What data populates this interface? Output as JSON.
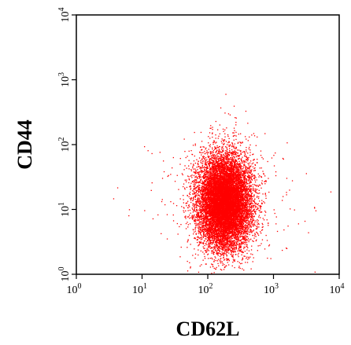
{
  "chart_data": {
    "type": "scatter",
    "xlabel": "CD62L",
    "ylabel": "CD44",
    "xscale": "log",
    "yscale": "log",
    "xlim": [
      1,
      10000
    ],
    "ylim": [
      1,
      10000
    ],
    "x_ticks": [
      1,
      10,
      100,
      1000,
      10000
    ],
    "y_ticks": [
      1,
      10,
      100,
      1000,
      10000
    ],
    "x_tick_labels": [
      "10",
      "10",
      "10",
      "10",
      "10"
    ],
    "x_tick_exponents": [
      "0",
      "1",
      "2",
      "3",
      "4"
    ],
    "y_tick_labels": [
      "10",
      "10",
      "10",
      "10",
      "10"
    ],
    "y_tick_exponents": [
      "0",
      "1",
      "2",
      "3",
      "4"
    ],
    "grid": false,
    "point_color": "#ff0000",
    "population": {
      "x_center": 180,
      "y_center": 13,
      "x_spread_decades": 0.2,
      "y_spread_decades": 0.36,
      "core_events": 12000,
      "sparse_events": 350
    }
  }
}
